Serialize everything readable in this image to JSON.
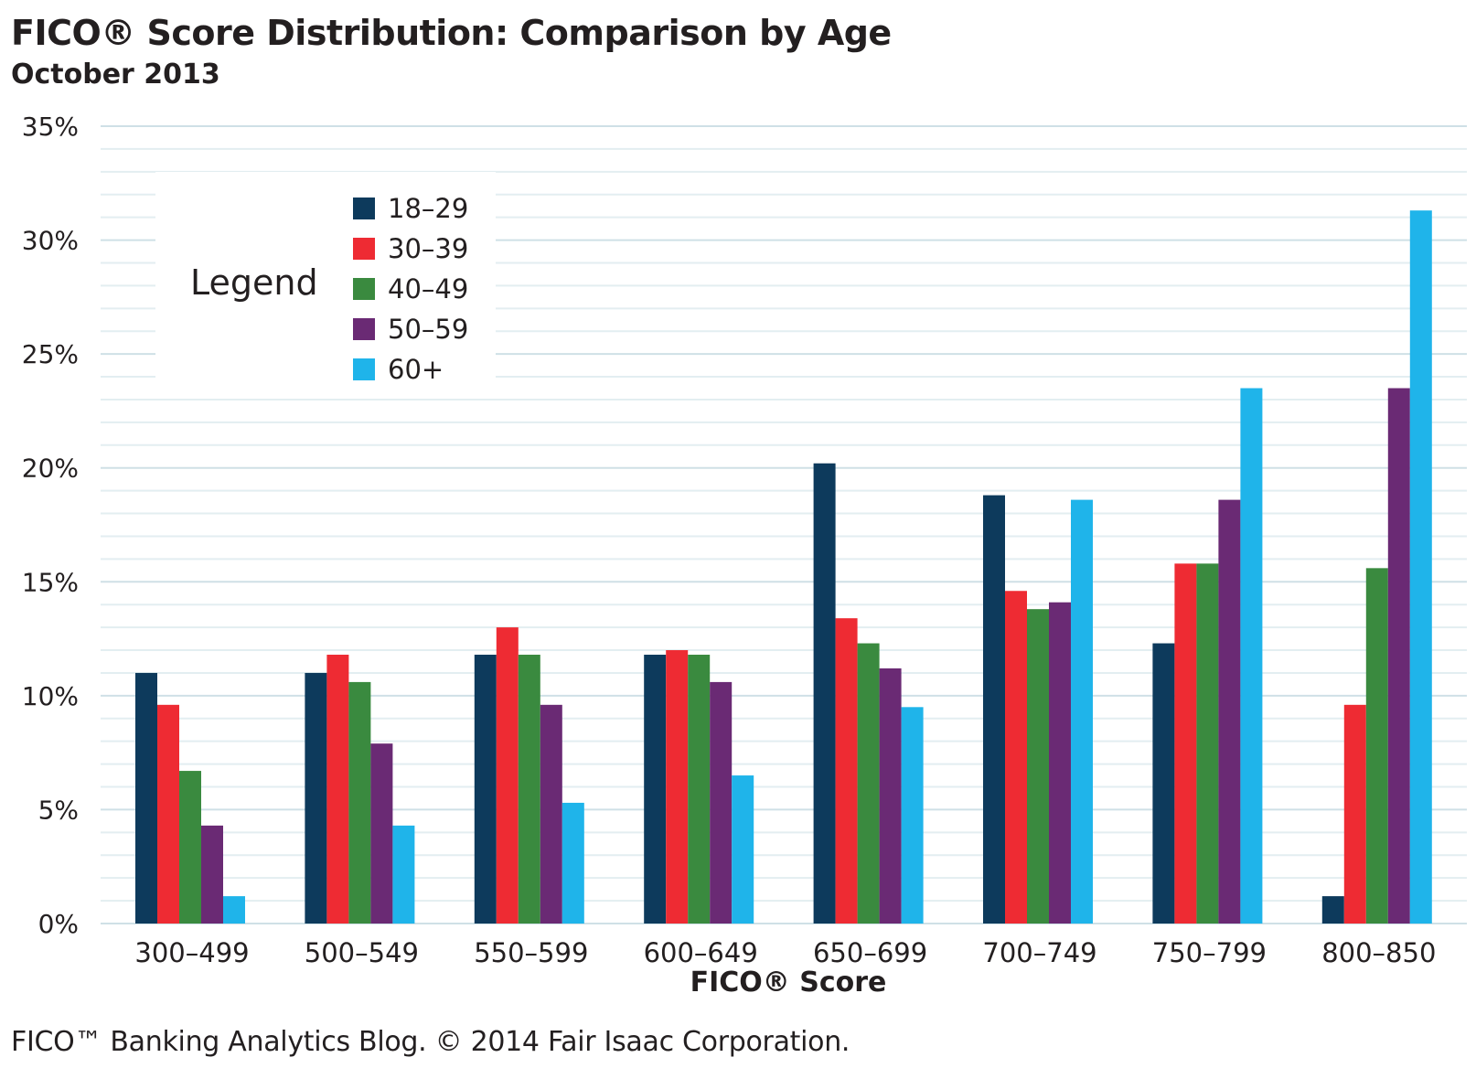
{
  "header": {
    "title": "FICO® Score Distribution: Comparison by Age",
    "subtitle": "October 2013"
  },
  "footer": {
    "credit": "FICO™ Banking Analytics Blog. © 2014 Fair Isaac Corporation."
  },
  "chart_data": {
    "type": "bar",
    "title": "FICO® Score Distribution: Comparison by Age",
    "subtitle": "October 2013",
    "xlabel": "FICO® Score",
    "ylabel": "",
    "ylim": [
      0,
      35
    ],
    "yticks": [
      "0%",
      "5%",
      "10%",
      "15%",
      "20%",
      "25%",
      "30%",
      "35%"
    ],
    "grid": true,
    "legend_title": "Legend",
    "legend_position": "top-left",
    "categories": [
      "300–499",
      "500–549",
      "550–599",
      "600–649",
      "650–699",
      "700–749",
      "750–799",
      "800–850"
    ],
    "series": [
      {
        "name": "18–29",
        "color": "#0d3a5c",
        "values": [
          11.0,
          11.0,
          11.8,
          11.8,
          20.2,
          18.8,
          12.3,
          1.2
        ]
      },
      {
        "name": "30–39",
        "color": "#ee2b33",
        "values": [
          9.6,
          11.8,
          13.0,
          12.0,
          13.4,
          14.6,
          15.8,
          9.6
        ]
      },
      {
        "name": "40–49",
        "color": "#3a8a3f",
        "values": [
          6.7,
          10.6,
          11.8,
          11.8,
          12.3,
          13.8,
          15.8,
          15.6
        ]
      },
      {
        "name": "50–59",
        "color": "#6a2a74",
        "values": [
          4.3,
          7.9,
          9.6,
          10.6,
          11.2,
          14.1,
          18.6,
          23.5
        ]
      },
      {
        "name": "60+",
        "color": "#1fb4ea",
        "values": [
          1.2,
          4.3,
          5.3,
          6.5,
          9.5,
          18.6,
          23.5,
          31.3
        ]
      }
    ]
  }
}
